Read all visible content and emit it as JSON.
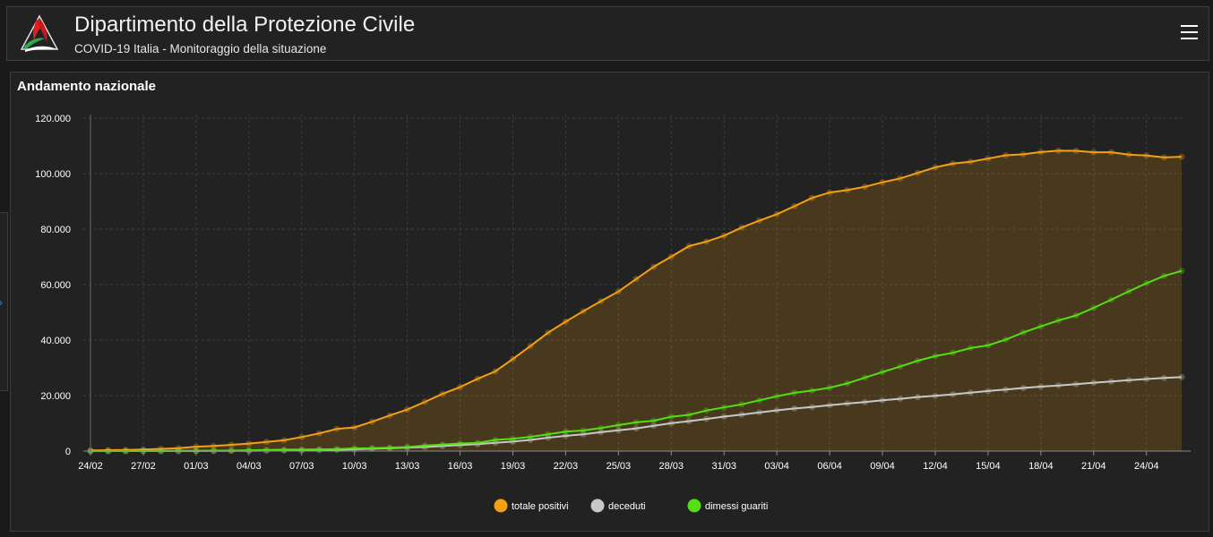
{
  "header": {
    "title": "Dipartimento della Protezione Civile",
    "subtitle": "COVID-19 Italia - Monitoraggio della situazione",
    "logo_icon": "protezione-civile-logo",
    "menu_icon": "hamburger-menu-icon"
  },
  "sidebar_toggle": {
    "icon": "chevron-right-icon",
    "color": "#2d8fd8"
  },
  "panel": {
    "title": "Andamento nazionale"
  },
  "colors": {
    "background": "#1a1a1a",
    "panel": "#222222",
    "totale_positivi": "#f4a013",
    "deceduti": "#c8c8c8",
    "dimessi_guariti": "#53e012"
  },
  "chart_data": {
    "type": "line",
    "title": "",
    "xlabel": "",
    "ylabel": "",
    "ylim": [
      0,
      120000
    ],
    "yticks": [
      "0",
      "20.000",
      "40.000",
      "60.000",
      "80.000",
      "100.000",
      "120.000"
    ],
    "grid": true,
    "legend_position": "bottom",
    "x_tick_labels": [
      "24/02",
      "27/02",
      "01/03",
      "04/03",
      "07/03",
      "10/03",
      "13/03",
      "16/03",
      "19/03",
      "22/03",
      "25/03",
      "28/03",
      "31/03",
      "03/04",
      "06/04",
      "09/04",
      "12/04",
      "15/04",
      "18/04",
      "21/04",
      "24/04"
    ],
    "x_tick_interval": 3,
    "categories": [
      "24/02",
      "25/02",
      "26/02",
      "27/02",
      "28/02",
      "29/02",
      "01/03",
      "02/03",
      "03/03",
      "04/03",
      "05/03",
      "06/03",
      "07/03",
      "08/03",
      "09/03",
      "10/03",
      "11/03",
      "12/03",
      "13/03",
      "14/03",
      "15/03",
      "16/03",
      "17/03",
      "18/03",
      "19/03",
      "20/03",
      "21/03",
      "22/03",
      "23/03",
      "24/03",
      "25/03",
      "26/03",
      "27/03",
      "28/03",
      "29/03",
      "30/03",
      "31/03",
      "01/04",
      "02/04",
      "03/04",
      "04/04",
      "05/04",
      "06/04",
      "07/04",
      "08/04",
      "09/04",
      "10/04",
      "11/04",
      "12/04",
      "13/04",
      "14/04",
      "15/04",
      "16/04",
      "17/04",
      "18/04",
      "19/04",
      "20/04",
      "21/04",
      "22/04",
      "23/04",
      "24/04",
      "25/04",
      "26/04"
    ],
    "series": [
      {
        "name": "totale positivi",
        "color": "#f4a013",
        "area": true,
        "values": [
          221,
          311,
          385,
          588,
          821,
          1049,
          1577,
          1835,
          2263,
          2706,
          3296,
          3916,
          5061,
          6387,
          7985,
          8514,
          10590,
          12839,
          14955,
          17750,
          20603,
          23073,
          26062,
          28710,
          33190,
          37860,
          42681,
          46638,
          50418,
          54030,
          57521,
          62013,
          66414,
          70065,
          73880,
          75528,
          77635,
          80572,
          83049,
          85388,
          88274,
          91246,
          93187,
          94067,
          95262,
          96877,
          98273,
          100269,
          102253,
          103616,
          104291,
          105418,
          106607,
          106962,
          107771,
          108257,
          108237,
          107709,
          107699,
          106848,
          106527,
          105847,
          106103
        ]
      },
      {
        "name": "deceduti",
        "color": "#c8c8c8",
        "area": false,
        "values": [
          7,
          10,
          12,
          17,
          21,
          29,
          34,
          52,
          79,
          107,
          148,
          197,
          233,
          366,
          463,
          631,
          827,
          1016,
          1266,
          1441,
          1809,
          2158,
          2503,
          2978,
          3405,
          4032,
          4825,
          5476,
          6077,
          6820,
          7503,
          8165,
          9134,
          10023,
          10779,
          11591,
          12428,
          13155,
          13915,
          14681,
          15362,
          15887,
          16523,
          17127,
          17669,
          18279,
          18849,
          19468,
          19899,
          20465,
          21067,
          21645,
          22170,
          22745,
          23227,
          23660,
          24114,
          24648,
          25085,
          25549,
          25969,
          26384,
          26644
        ]
      },
      {
        "name": "dimessi guariti",
        "color": "#53e012",
        "area": false,
        "values": [
          1,
          1,
          3,
          45,
          46,
          50,
          83,
          149,
          160,
          276,
          414,
          523,
          589,
          622,
          724,
          1004,
          1045,
          1258,
          1439,
          1966,
          2335,
          2749,
          2941,
          4025,
          4440,
          5129,
          6072,
          7024,
          7432,
          8326,
          9362,
          10361,
          10950,
          12384,
          13030,
          14620,
          15729,
          16847,
          18278,
          19758,
          20996,
          21815,
          22837,
          24392,
          26491,
          28470,
          30455,
          32534,
          34211,
          35435,
          37130,
          38092,
          40164,
          42727,
          44927,
          47055,
          48877,
          51600,
          54543,
          57576,
          60498,
          63120,
          64928
        ]
      }
    ]
  }
}
